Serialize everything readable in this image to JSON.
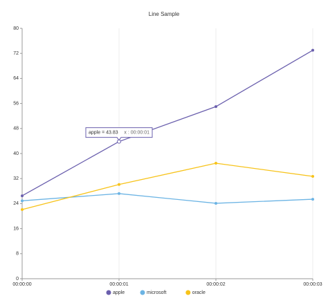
{
  "chart_data": {
    "type": "line",
    "title": "Line Sample",
    "categories": [
      "00:00:00",
      "00:00:01",
      "00:00:02",
      "00:00:03"
    ],
    "series": [
      {
        "name": "apple",
        "color": "#6a5fad",
        "values": [
          26.5,
          43.83,
          55,
          73
        ]
      },
      {
        "name": "microsoft",
        "color": "#6cb4e4",
        "values": [
          24.9,
          27.2,
          24.1,
          25.4
        ]
      },
      {
        "name": "oracle",
        "color": "#f7c31a",
        "values": [
          22.1,
          30.1,
          36.9,
          32.7
        ]
      }
    ],
    "ylim": [
      0,
      80
    ],
    "yticks": [
      0,
      8,
      16,
      24,
      32,
      40,
      48,
      56,
      64,
      72,
      80
    ],
    "grid": "x",
    "legend": "bottom",
    "tooltip": {
      "series": 0,
      "index": 1,
      "label": "apple = 43.83",
      "x_label": "x : 00:00:01"
    }
  }
}
